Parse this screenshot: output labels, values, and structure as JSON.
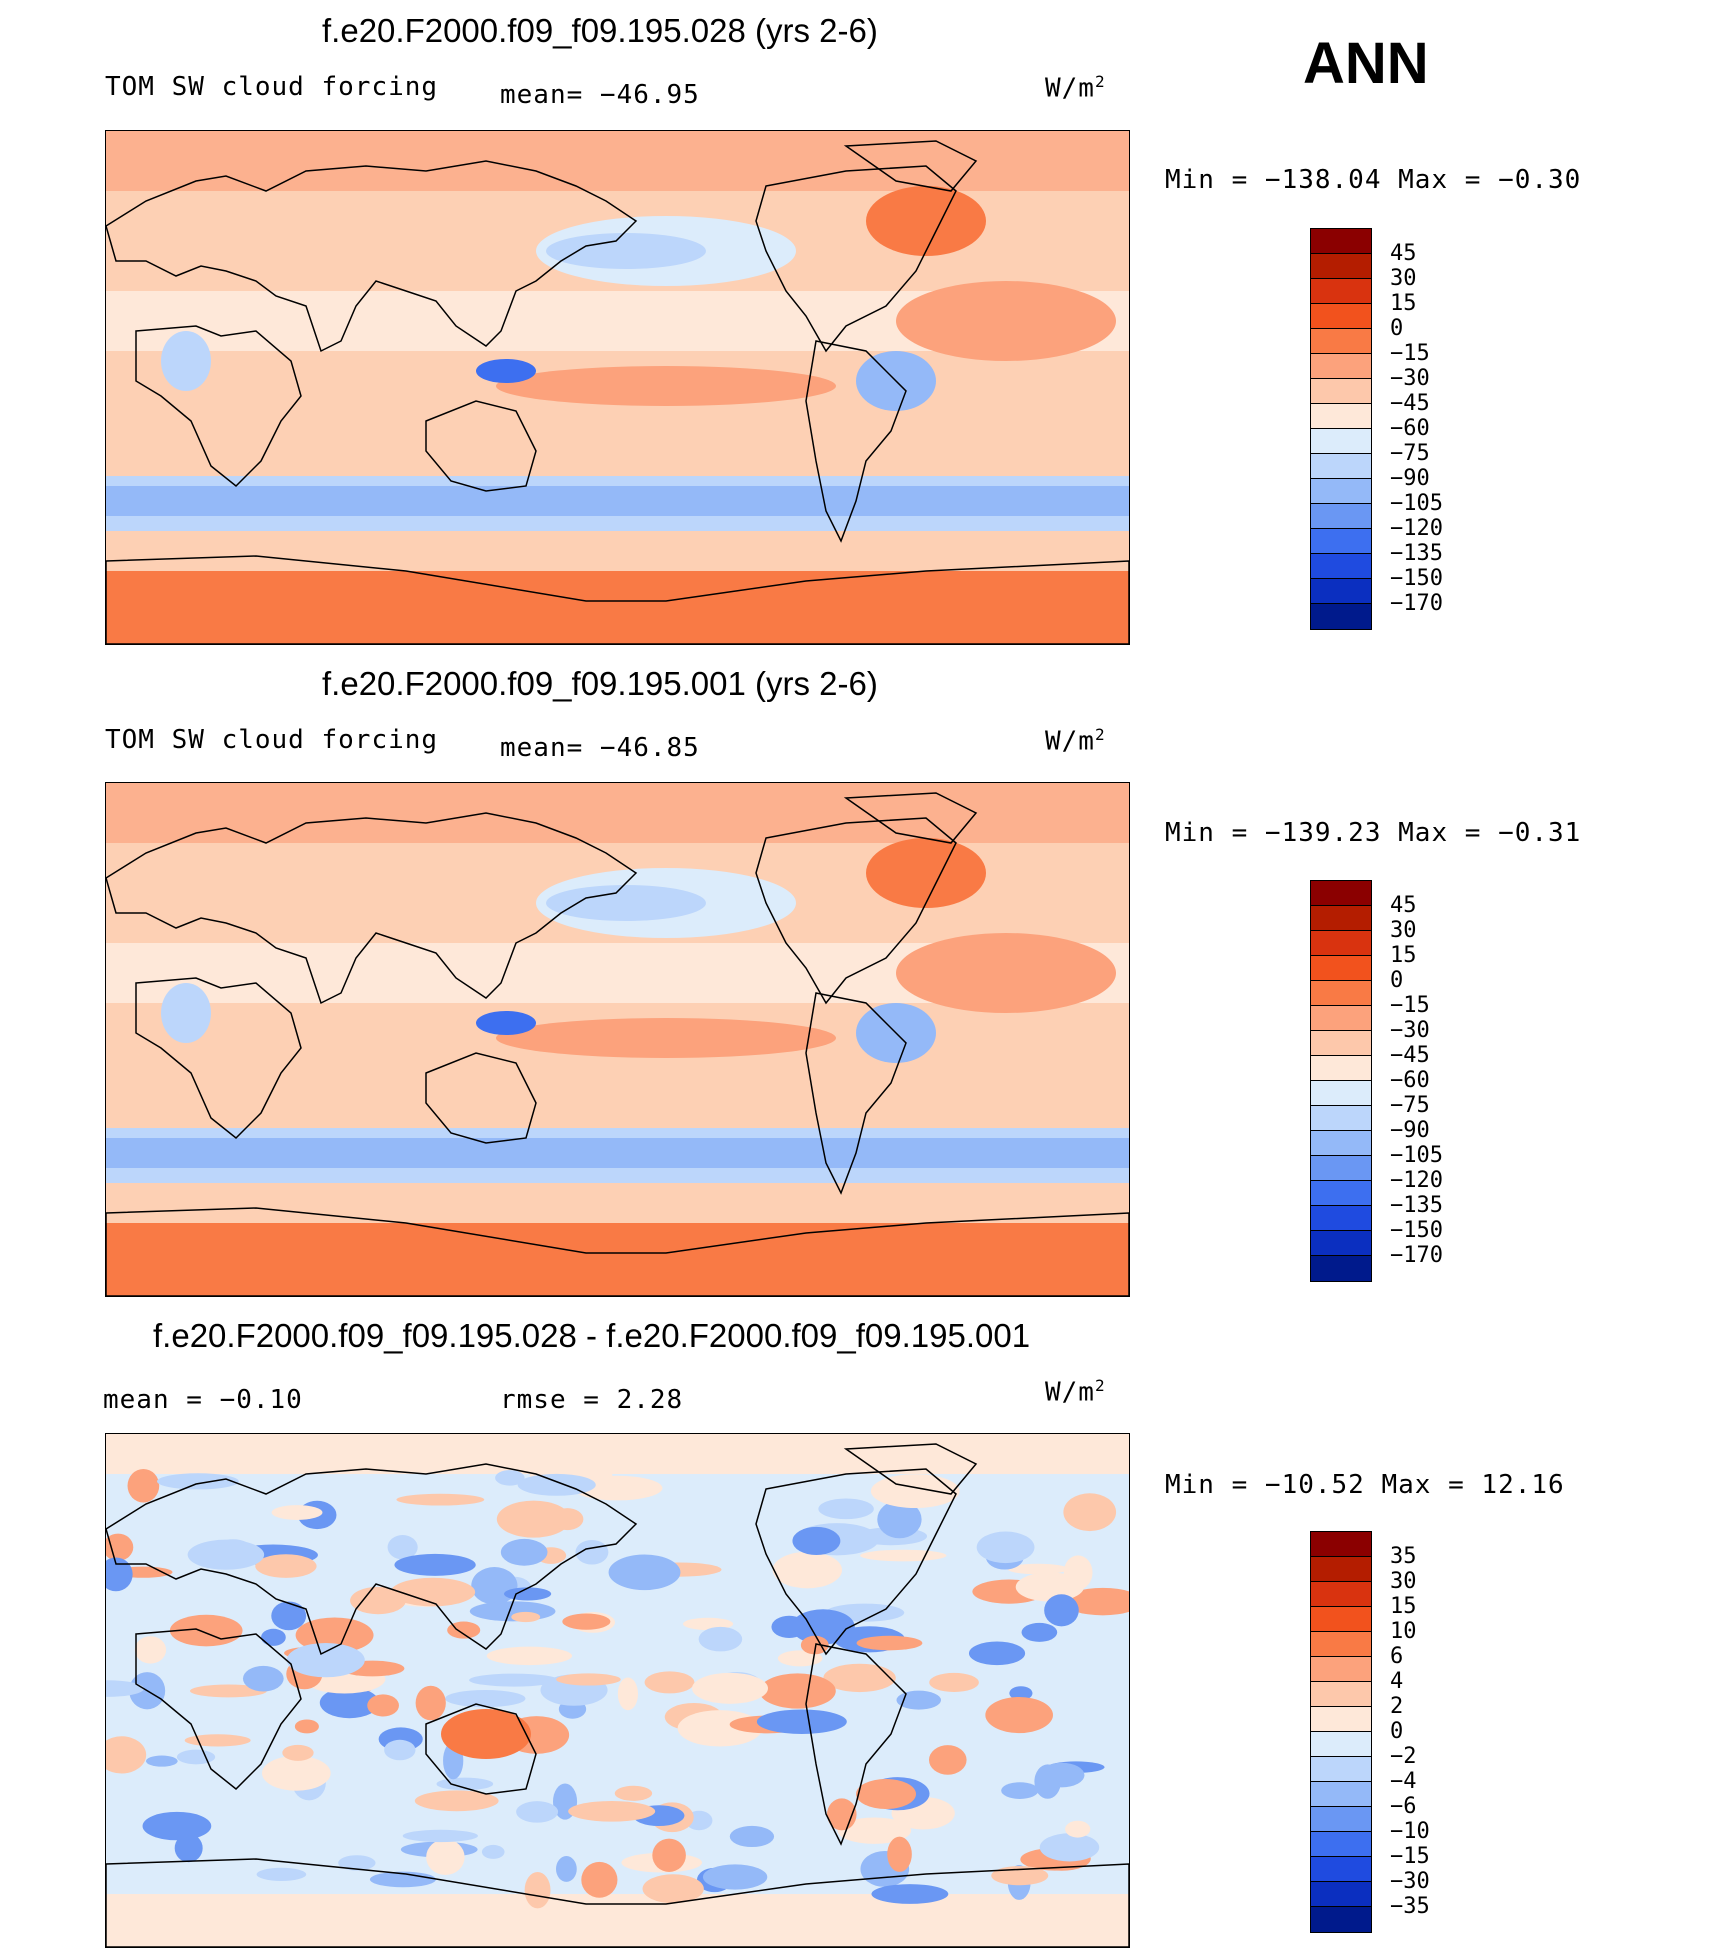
{
  "season": "ANN",
  "panels": [
    {
      "title": "f.e20.F2000.f09_f09.195.028 (yrs 2-6)",
      "left_label": "TOM SW cloud forcing",
      "mid_label": "mean= −46.95",
      "units": "W/m",
      "units_sup": "2",
      "minmax": "Min = −138.04 Max =   −0.30",
      "colorbar": {
        "labels": [
          "45",
          "30",
          "15",
          "0",
          "−15",
          "−30",
          "−45",
          "−60",
          "−75",
          "−90",
          "−105",
          "−120",
          "−135",
          "−150",
          "−170"
        ],
        "colors": [
          "#8b0000",
          "#b41d00",
          "#d9330f",
          "#f2521d",
          "#f97a45",
          "#fca27c",
          "#fdc8ab",
          "#fee8d9",
          "#dcecfb",
          "#bcd6fb",
          "#94b9f8",
          "#6a97f3",
          "#3d6ff0",
          "#1f4be0",
          "#0b2fc0",
          "#001a8c"
        ]
      },
      "map_style": "absolute"
    },
    {
      "title": "f.e20.F2000.f09_f09.195.001 (yrs 2-6)",
      "left_label": "TOM SW cloud forcing",
      "mid_label": "mean= −46.85",
      "units": "W/m",
      "units_sup": "2",
      "minmax": "Min = −139.23 Max =   −0.31",
      "colorbar": {
        "labels": [
          "45",
          "30",
          "15",
          "0",
          "−15",
          "−30",
          "−45",
          "−60",
          "−75",
          "−90",
          "−105",
          "−120",
          "−135",
          "−150",
          "−170"
        ],
        "colors": [
          "#8b0000",
          "#b41d00",
          "#d9330f",
          "#f2521d",
          "#f97a45",
          "#fca27c",
          "#fdc8ab",
          "#fee8d9",
          "#dcecfb",
          "#bcd6fb",
          "#94b9f8",
          "#6a97f3",
          "#3d6ff0",
          "#1f4be0",
          "#0b2fc0",
          "#001a8c"
        ]
      },
      "map_style": "absolute"
    },
    {
      "title": "f.e20.F2000.f09_f09.195.028 - f.e20.F2000.f09_f09.195.001",
      "left_label": "mean =   −0.10",
      "mid_label": "rmse =    2.28",
      "units": "W/m",
      "units_sup": "2",
      "minmax": "Min = −10.52 Max =   12.16",
      "colorbar": {
        "labels": [
          "35",
          "30",
          "15",
          "10",
          "6",
          "4",
          "2",
          "0",
          "−2",
          "−4",
          "−6",
          "−10",
          "−15",
          "−30",
          "−35"
        ],
        "colors": [
          "#8b0000",
          "#b41d00",
          "#d9330f",
          "#f2521d",
          "#f97a45",
          "#fca27c",
          "#fdc8ab",
          "#fee8d9",
          "#dcecfb",
          "#bcd6fb",
          "#94b9f8",
          "#6a97f3",
          "#3d6ff0",
          "#1f4be0",
          "#0b2fc0",
          "#001a8c"
        ]
      },
      "map_style": "difference"
    }
  ]
}
